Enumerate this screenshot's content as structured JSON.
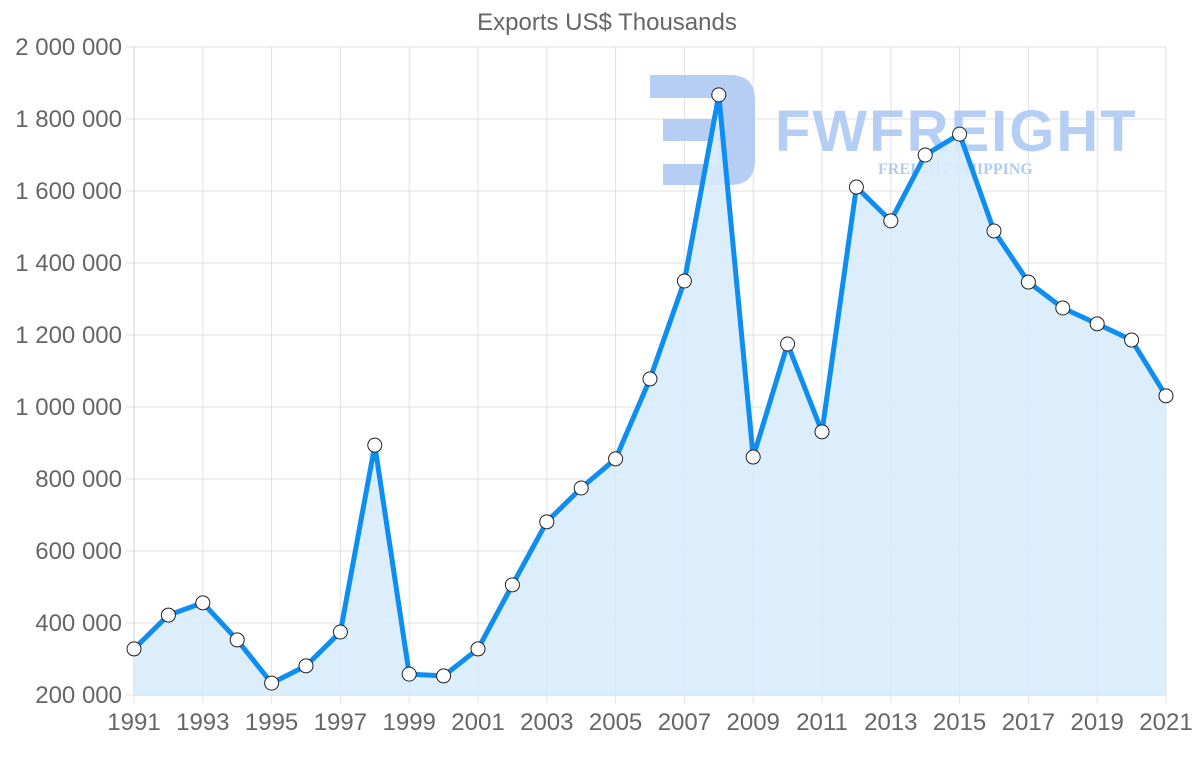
{
  "chart_data": {
    "type": "area",
    "title": "Exports US$ Thousands",
    "xlabel": "",
    "ylabel": "",
    "x": [
      1991,
      1992,
      1993,
      1994,
      1995,
      1996,
      1997,
      1998,
      1999,
      2000,
      2001,
      2002,
      2003,
      2004,
      2005,
      2006,
      2007,
      2008,
      2009,
      2010,
      2011,
      2012,
      2013,
      2014,
      2015,
      2016,
      2017,
      2018,
      2019,
      2020,
      2021
    ],
    "series": [
      {
        "name": "Exports US$ Thousands",
        "values": [
          328000,
          422000,
          456000,
          353000,
          233000,
          281000,
          375000,
          894000,
          258000,
          253000,
          328000,
          506000,
          681000,
          775000,
          856000,
          1078000,
          1350000,
          1867000,
          861000,
          1175000,
          931000,
          1611000,
          1517000,
          1700000,
          1758000,
          1489000,
          1347000,
          1275000,
          1231000,
          1186000,
          1031000
        ]
      }
    ],
    "ylim": [
      200000,
      2000000
    ],
    "y_ticks": [
      "2 000 000",
      "1 800 000",
      "1 600 000",
      "1 400 000",
      "1 200 000",
      "1 000 000",
      "800 000",
      "600 000",
      "400 000",
      "200 000"
    ],
    "x_tick_labels": [
      "1991",
      "1993",
      "1995",
      "1997",
      "1999",
      "2001",
      "2003",
      "2005",
      "2007",
      "2009",
      "2011",
      "2013",
      "2015",
      "2017",
      "2019",
      "2021"
    ],
    "grid": true,
    "legend": "none",
    "line_color": "#0d8ef0",
    "fill_color": "#d8ebfc",
    "marker_fill": "#ffffff",
    "marker_stroke": "#222222"
  },
  "watermark": {
    "brand": "FWFREIGHT",
    "tagline": "FREIGHT SHIPPING",
    "color": "#a9c6f2"
  }
}
